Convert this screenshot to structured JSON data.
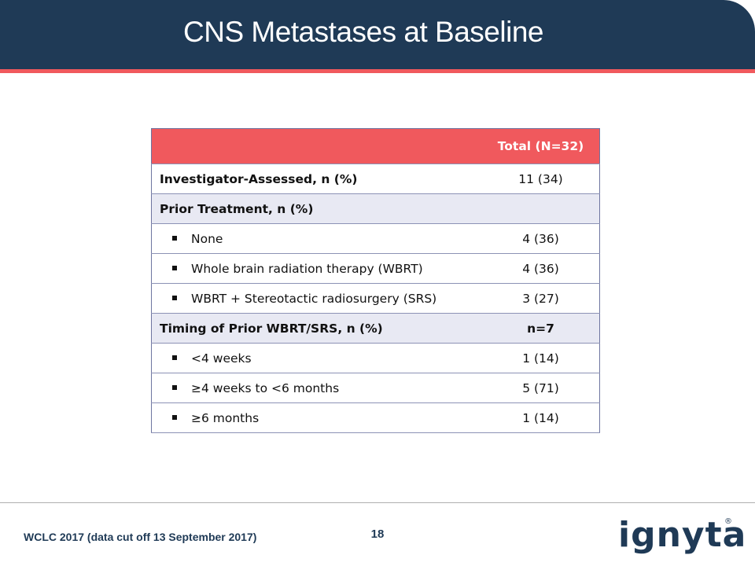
{
  "slide": {
    "title": "CNS Metastases at Baseline",
    "footer_text": "WCLC 2017 (data cut off 13 September 2017)",
    "page_number": "18",
    "logo_text": "ignyta",
    "logo_mark": "®"
  },
  "table": {
    "header": {
      "label": "",
      "value": "Total (N=32)"
    },
    "rows": [
      {
        "label": "Investigator-Assessed, n (%)",
        "value": "11 (34)",
        "bold": true,
        "bullet": false
      },
      {
        "label": "Prior Treatment, n (%)",
        "value": "",
        "bold": true,
        "bullet": false
      },
      {
        "label": "None",
        "value": "4 (36)",
        "bold": false,
        "bullet": true
      },
      {
        "label": "Whole brain radiation therapy (WBRT)",
        "value": "4 (36)",
        "bold": false,
        "bullet": true
      },
      {
        "label": "WBRT + Stereotactic radiosurgery (SRS)",
        "value": "3 (27)",
        "bold": false,
        "bullet": true
      },
      {
        "label": "Timing of Prior WBRT/SRS, n (%)",
        "value": "n=7",
        "bold": true,
        "bullet": false
      },
      {
        "label": "<4 weeks",
        "value": "1 (14)",
        "bold": false,
        "bullet": true
      },
      {
        "label": "≥4 weeks to <6 months",
        "value": "5 (71)",
        "bold": false,
        "bullet": true
      },
      {
        "label": "≥6 months",
        "value": "1 (14)",
        "bold": false,
        "bullet": true
      }
    ]
  },
  "colors": {
    "header_bg": "#1f3a56",
    "accent": "#f0595d",
    "row_alt": "#e8e9f3"
  }
}
